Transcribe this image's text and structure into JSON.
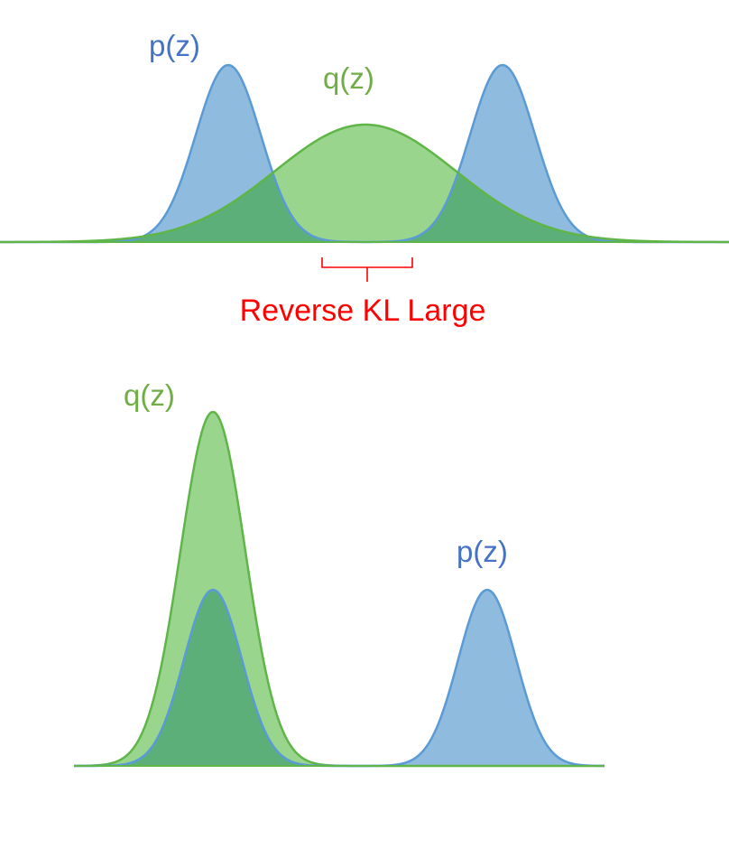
{
  "top_panel": {
    "p_label": "p(z)",
    "q_label": "q(z)",
    "annotation": "Reverse KL Large"
  },
  "bottom_panel": {
    "q_label": "q(z)",
    "p_label": "p(z)"
  },
  "colors": {
    "p_fill": "#8fbbdf",
    "p_stroke": "#5b9bd5",
    "q_fill": "#9ad58e",
    "q_stroke": "#5fb548",
    "overlap_fill": "#5caf79",
    "axis": "#5fb548",
    "p_text": "#4472c4",
    "q_text": "#70ad47",
    "annotation_text": "#ff0000"
  }
}
